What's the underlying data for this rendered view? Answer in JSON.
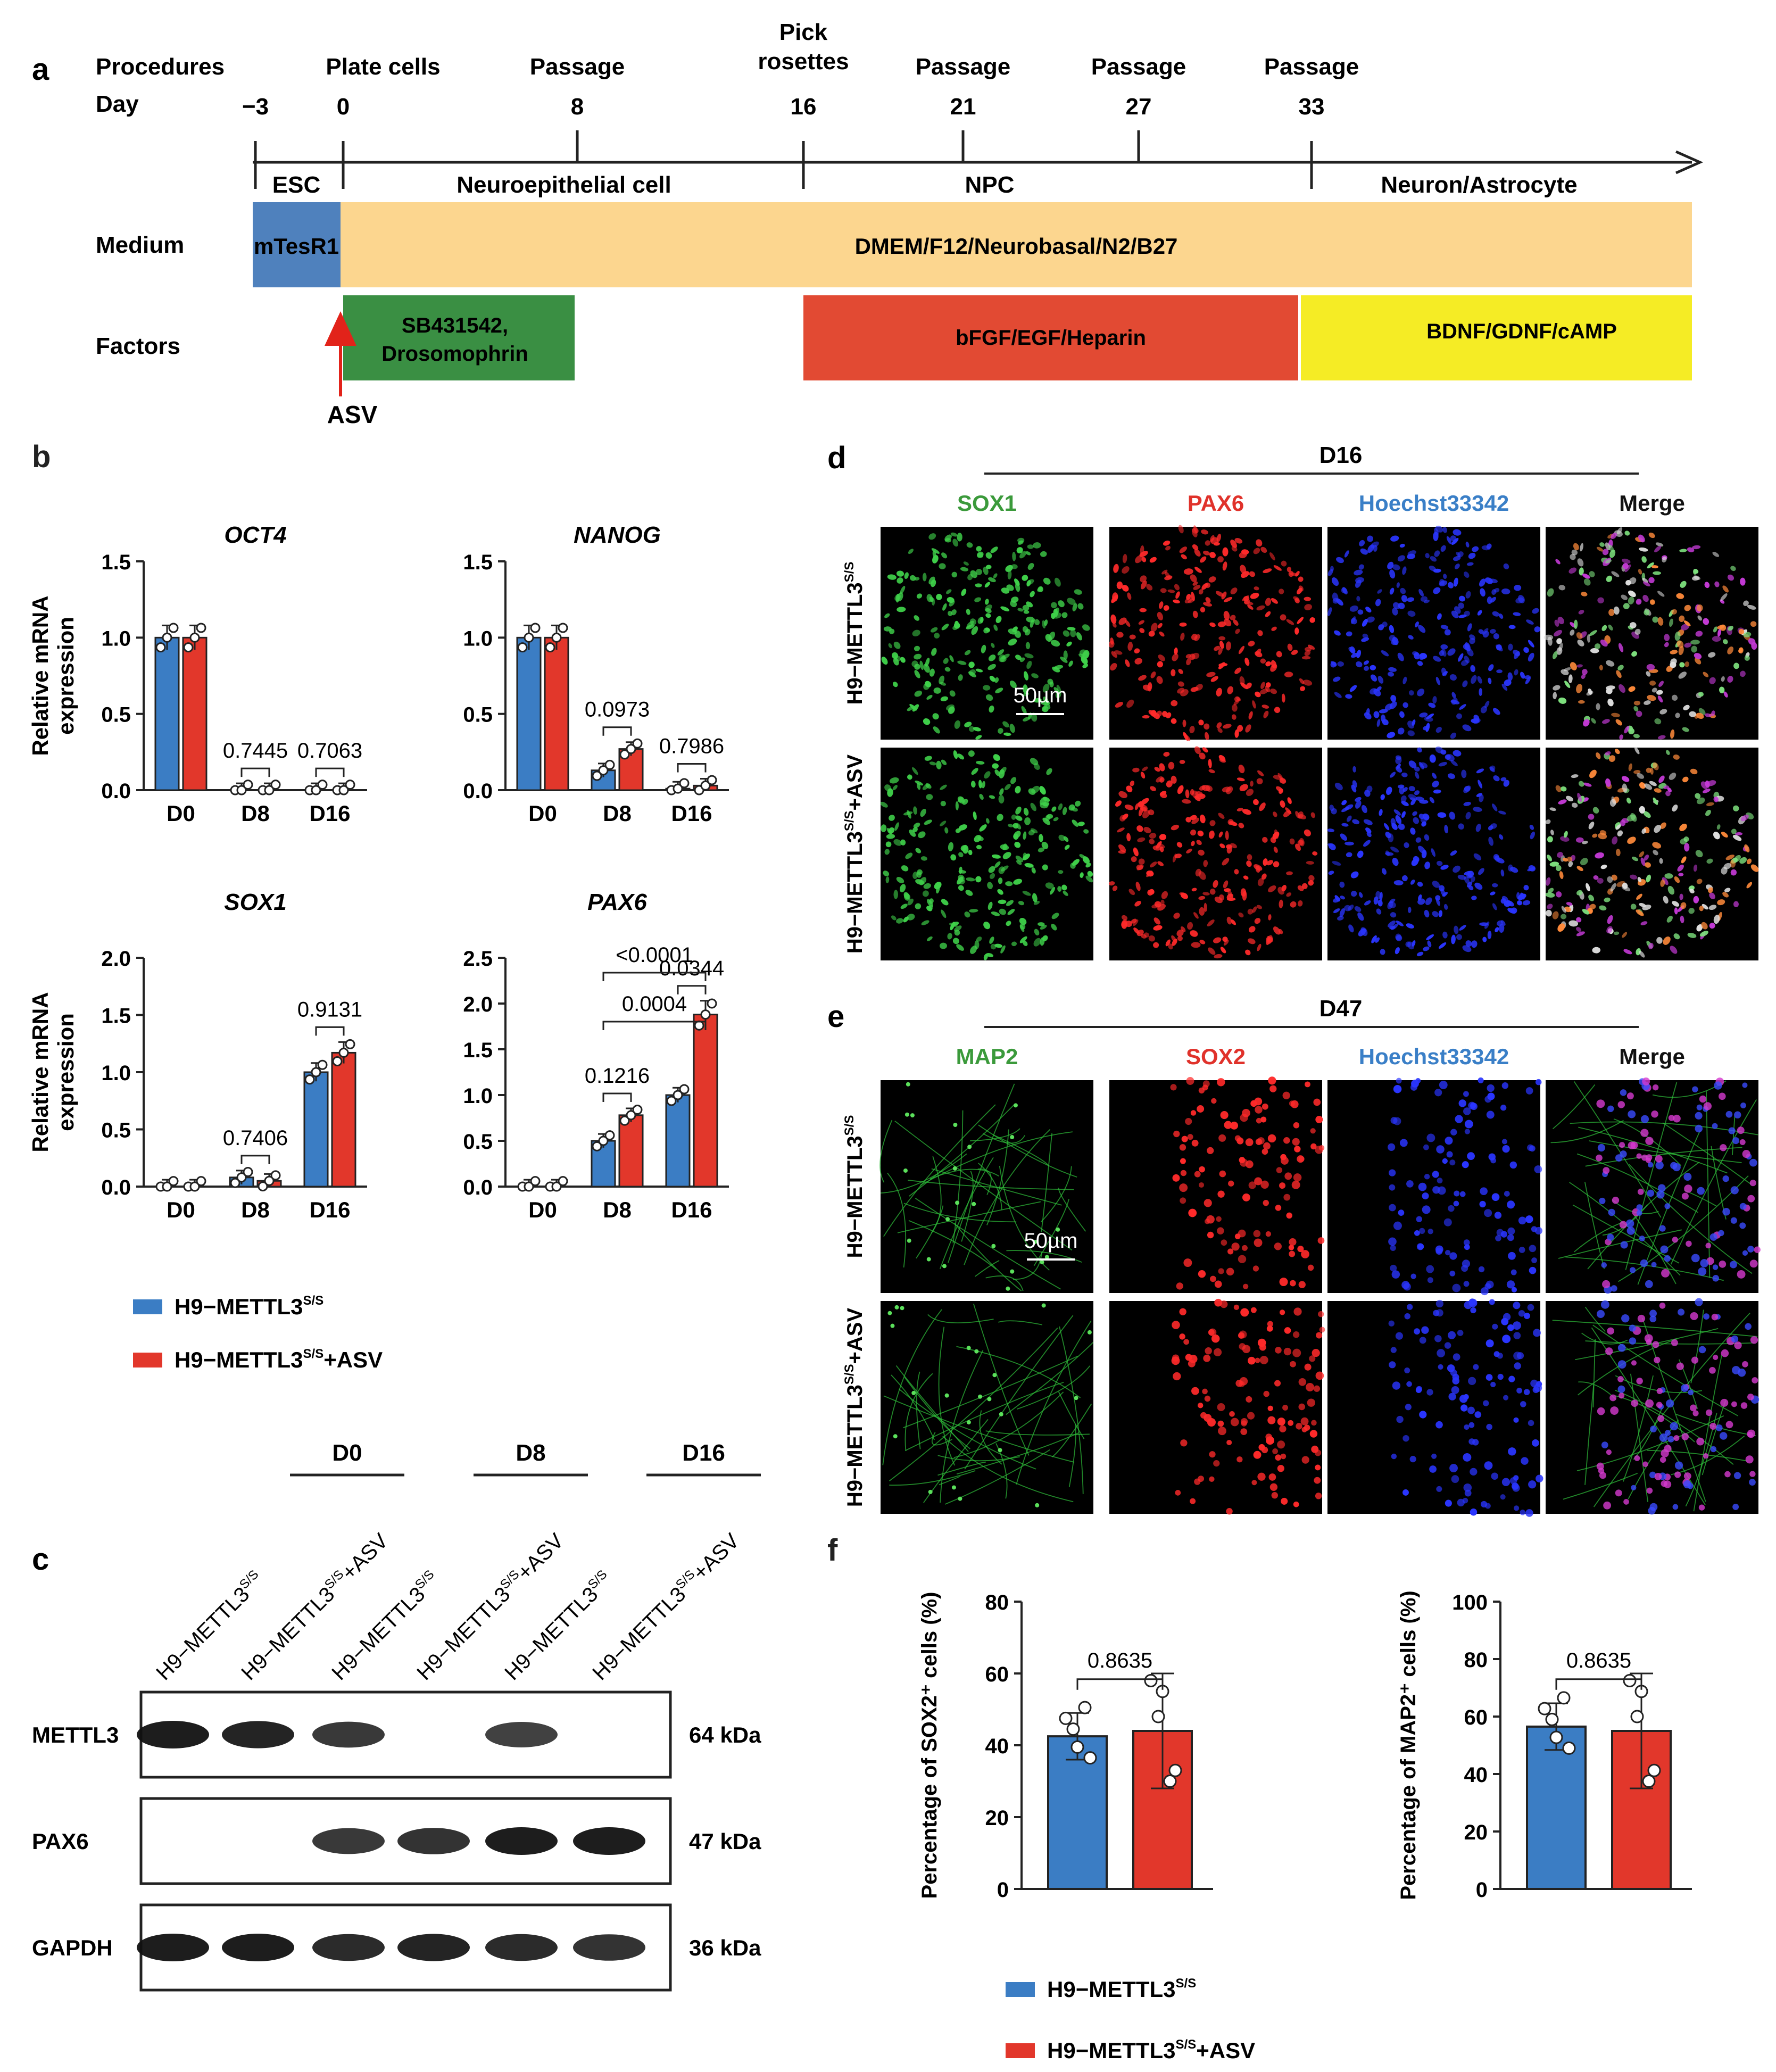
{
  "panel_letters": {
    "a": "a",
    "b": "b",
    "c": "c",
    "d": "d",
    "e": "e",
    "f": "f"
  },
  "timeline": {
    "procedures_label": "Procedures",
    "day_label": "Day",
    "events": [
      {
        "procedure": "",
        "day": "−3"
      },
      {
        "procedure": "Plate cells",
        "day": "0"
      },
      {
        "procedure": "Passage",
        "day": "8"
      },
      {
        "procedure": "Pick\nrosettes",
        "day": "16"
      },
      {
        "procedure": "Passage",
        "day": "21"
      },
      {
        "procedure": "Passage",
        "day": "27"
      },
      {
        "procedure": "Passage",
        "day": "33"
      }
    ],
    "stages": [
      "ESC",
      "Neuroepithelial cell",
      "NPC",
      "Neuron/Astrocyte"
    ],
    "medium_label": "Medium",
    "medium": [
      {
        "text": "mTesR1",
        "color": "#4f81bd"
      },
      {
        "text": "DMEM/F12/Neurobasal/N2/B27",
        "color": "#fcd68f"
      }
    ],
    "factors_label": "Factors",
    "factors": [
      {
        "text": "SB431542,\nDrosomophrin",
        "color": "#3a8f43"
      },
      {
        "text": "bFGF/EGF/Heparin",
        "color": "#e24a33"
      },
      {
        "text": "BDNF/GDNF/cAMP",
        "color": "#f5ec25"
      }
    ],
    "asv_label": "ASV"
  },
  "legend": {
    "ctrl": "H9−METTL3",
    "ctrl_sup": "S/S",
    "asv": "H9−METTL3",
    "asv_sup": "S/S",
    "asv_suffix": "+ASV",
    "ctrl_color": "#3b7dc4",
    "asv_color": "#e2372b"
  },
  "chart_data": [
    {
      "type": "bar",
      "title": "OCT4",
      "ylabel": "Relative mRNA\nexpression",
      "categories": [
        "D0",
        "D8",
        "D16"
      ],
      "ylim": [
        0,
        1.5
      ],
      "yticks": [
        "0.0",
        "0.5",
        "1.0",
        "1.5"
      ],
      "series": [
        {
          "name": "H9−METTL3S/S",
          "values": [
            1.0,
            0.0,
            0.0
          ]
        },
        {
          "name": "H9−METTL3S/S+ASV",
          "values": [
            1.0,
            0.0,
            0.0
          ]
        }
      ],
      "pvalues": [
        {
          "text": "0.7445",
          "category": 1
        },
        {
          "text": "0.7063",
          "category": 2
        }
      ]
    },
    {
      "type": "bar",
      "title": "NANOG",
      "ylabel": "",
      "categories": [
        "D0",
        "D8",
        "D16"
      ],
      "ylim": [
        0,
        1.5
      ],
      "yticks": [
        "0.0",
        "0.5",
        "1.0",
        "1.5"
      ],
      "series": [
        {
          "name": "H9−METTL3S/S",
          "values": [
            1.0,
            0.13,
            0.01
          ]
        },
        {
          "name": "H9−METTL3S/S+ASV",
          "values": [
            1.0,
            0.27,
            0.03
          ]
        }
      ],
      "pvalues": [
        {
          "text": "0.0973",
          "category": 1
        },
        {
          "text": "0.7986",
          "category": 2
        }
      ]
    },
    {
      "type": "bar",
      "title": "SOX1",
      "ylabel": "Relative mRNA\nexpression",
      "categories": [
        "D0",
        "D8",
        "D16"
      ],
      "ylim": [
        0,
        2.0
      ],
      "yticks": [
        "0.0",
        "0.5",
        "1.0",
        "1.5",
        "2.0"
      ],
      "series": [
        {
          "name": "H9−METTL3S/S",
          "values": [
            0.0,
            0.08,
            1.0
          ]
        },
        {
          "name": "H9−METTL3S/S+ASV",
          "values": [
            0.0,
            0.05,
            1.17
          ]
        }
      ],
      "pvalues": [
        {
          "text": "0.7406",
          "category": 1
        },
        {
          "text": "0.9131",
          "category": 2
        }
      ]
    },
    {
      "type": "bar",
      "title": "PAX6",
      "ylabel": "",
      "categories": [
        "D0",
        "D8",
        "D16"
      ],
      "ylim": [
        0,
        2.5
      ],
      "yticks": [
        "0.0",
        "0.5",
        "1.0",
        "1.5",
        "2.0",
        "2.5"
      ],
      "series": [
        {
          "name": "H9−METTL3S/S",
          "values": [
            0.0,
            0.5,
            1.0
          ]
        },
        {
          "name": "H9−METTL3S/S+ASV",
          "values": [
            0.0,
            0.78,
            1.88
          ]
        }
      ],
      "pvalues": [
        {
          "text": "0.1216",
          "category": 1
        },
        {
          "text": "0.0344",
          "category": 2
        },
        {
          "text": "0.0004",
          "from": 1,
          "to": 2
        },
        {
          "text": "<0.0001",
          "from": 1,
          "to": 2
        }
      ]
    },
    {
      "type": "bar",
      "title": "",
      "ylabel": "Percentage of SOX2⁺ cells (%)",
      "categories": [
        "H9−METTL3S/S",
        "H9−METTL3S/S+ASV"
      ],
      "ylim": [
        0,
        80
      ],
      "yticks": [
        "0",
        "20",
        "40",
        "60",
        "80"
      ],
      "values": [
        42.5,
        44
      ],
      "pvalue": "0.8635"
    },
    {
      "type": "bar",
      "title": "",
      "ylabel": "Percentage of MAP2⁺ cells (%)",
      "categories": [
        "H9−METTL3S/S",
        "H9−METTL3S/S+ASV"
      ],
      "ylim": [
        0,
        100
      ],
      "yticks": [
        "0",
        "20",
        "40",
        "60",
        "80",
        "100"
      ],
      "values": [
        56.5,
        55
      ],
      "pvalue": "0.8635"
    }
  ],
  "blot": {
    "groups": [
      "D0",
      "D8",
      "D16"
    ],
    "lanes": [
      "H9−METTL3S/S",
      "H9−METTL3S/S+ASV",
      "H9−METTL3S/S",
      "H9−METTL3S/S+ASV",
      "H9−METTL3S/S",
      "H9−METTL3S/S+ASV"
    ],
    "lane_sup": "S/S",
    "rows": [
      {
        "label": "METTL3",
        "kda": "64 kDa",
        "intensity": [
          1,
          0.95,
          0.8,
          0,
          0.75,
          0
        ]
      },
      {
        "label": "PAX6",
        "kda": "47 kDa",
        "intensity": [
          0,
          0,
          0.8,
          0.85,
          1,
          1
        ]
      },
      {
        "label": "GAPDH",
        "kda": "36 kDa",
        "intensity": [
          1,
          1,
          0.9,
          0.95,
          0.9,
          0.85
        ]
      }
    ]
  },
  "panel_d": {
    "day": "D16",
    "columns": [
      {
        "label": "SOX1",
        "color": "#3b9a3b"
      },
      {
        "label": "PAX6",
        "color": "#e0322b"
      },
      {
        "label": "Hoechst33342",
        "color": "#3a7fc7"
      },
      {
        "label": "Merge",
        "color": "#111111"
      }
    ],
    "rows": [
      "H9−METTL3",
      "H9−METTL3"
    ],
    "row_suffix": [
      "",
      "+ASV"
    ],
    "row_sup": "S/S",
    "scale": "50µm"
  },
  "panel_e": {
    "day": "D47",
    "columns": [
      {
        "label": "MAP2",
        "color": "#3b9a3b"
      },
      {
        "label": "SOX2",
        "color": "#e0322b"
      },
      {
        "label": "Hoechst33342",
        "color": "#3a7fc7"
      },
      {
        "label": "Merge",
        "color": "#111111"
      }
    ],
    "rows": [
      "H9−METTL3",
      "H9−METTL3"
    ],
    "row_suffix": [
      "",
      "+ASV"
    ],
    "row_sup": "S/S",
    "scale": "50µm"
  }
}
